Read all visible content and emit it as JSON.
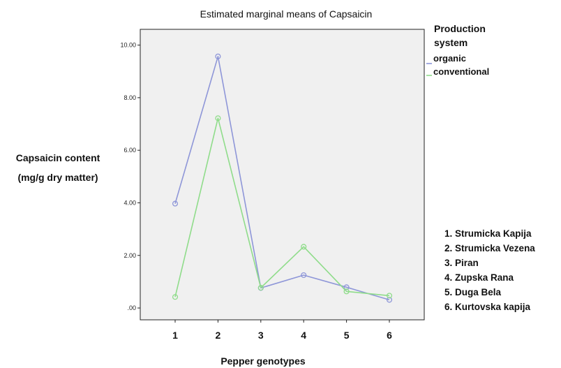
{
  "chart_data": {
    "type": "line",
    "title": "Estimated marginal means of Capsaicin",
    "xlabel": "Pepper genotypes",
    "ylabel_lines": [
      "Capsaicin content",
      "(mg/g dry matter)"
    ],
    "categories": [
      "1",
      "2",
      "3",
      "4",
      "5",
      "6"
    ],
    "ylim": [
      -0.45,
      10.6
    ],
    "yticks": [
      0,
      2,
      4,
      6,
      8,
      10
    ],
    "ytick_labels": [
      ".00",
      "2.00",
      "4.00",
      "6.00",
      "8.00",
      "10.00"
    ],
    "grid": false,
    "plot_background": "#f0f0f0",
    "legend": {
      "title_lines": [
        "Production",
        "system"
      ],
      "placement": "top-right, outside plot"
    },
    "series": [
      {
        "name": "organic",
        "color": "#8e96d8",
        "values": [
          3.97,
          9.57,
          0.76,
          1.25,
          0.79,
          0.31
        ]
      },
      {
        "name": "conventional",
        "color": "#8fdc8a",
        "values": [
          0.42,
          7.22,
          0.77,
          2.33,
          0.63,
          0.47
        ]
      }
    ],
    "annotation_lines": [
      "1. Strumicka Kapija",
      "2. Strumicka Vezena",
      "3. Piran",
      "4. Zupska Rana",
      "5. Duga Bela",
      "6. Kurtovska kapija"
    ]
  }
}
